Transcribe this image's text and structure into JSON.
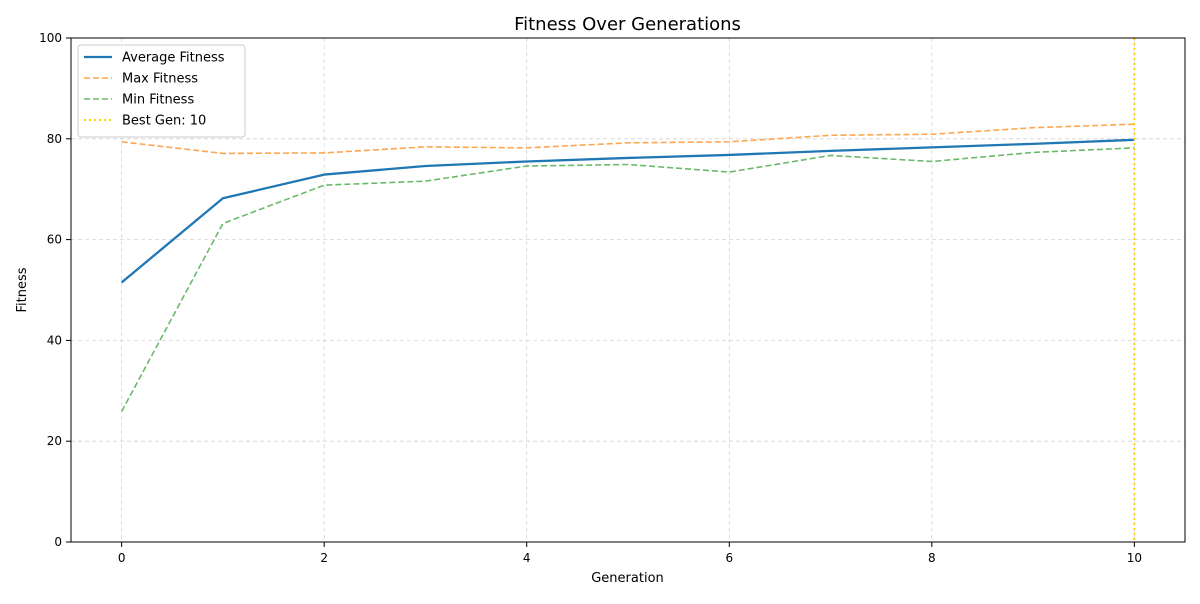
{
  "chart_data": {
    "type": "line",
    "title": "Fitness Over Generations",
    "xlabel": "Generation",
    "ylabel": "Fitness",
    "xlim": [
      -0.5,
      10.5
    ],
    "ylim": [
      0,
      100
    ],
    "xticks": [
      0,
      2,
      4,
      6,
      8,
      10
    ],
    "yticks": [
      0,
      20,
      40,
      60,
      80,
      100
    ],
    "grid": true,
    "legend_position": "top-left",
    "x": [
      0,
      1,
      2,
      3,
      4,
      5,
      6,
      7,
      8,
      9,
      10
    ],
    "series": [
      {
        "name": "Average Fitness",
        "color": "#1f77b4",
        "style": "solid",
        "values": [
          51.5,
          68.2,
          72.9,
          74.6,
          75.5,
          76.2,
          76.8,
          77.6,
          78.3,
          79.0,
          79.8
        ]
      },
      {
        "name": "Max Fitness",
        "color": "#ffa54f",
        "style": "dashed",
        "values": [
          79.4,
          77.1,
          77.2,
          78.4,
          78.2,
          79.2,
          79.4,
          80.7,
          80.9,
          82.2,
          82.9
        ]
      },
      {
        "name": "Min Fitness",
        "color": "#6ab96a",
        "style": "dashed",
        "values": [
          25.9,
          63.2,
          70.8,
          71.6,
          74.6,
          74.9,
          73.4,
          76.7,
          75.5,
          77.3,
          78.2
        ]
      }
    ],
    "annotations": [
      {
        "type": "vline",
        "label": "Best Gen: 10",
        "x": 10,
        "color": "#ffd700",
        "style": "dotted"
      }
    ]
  }
}
